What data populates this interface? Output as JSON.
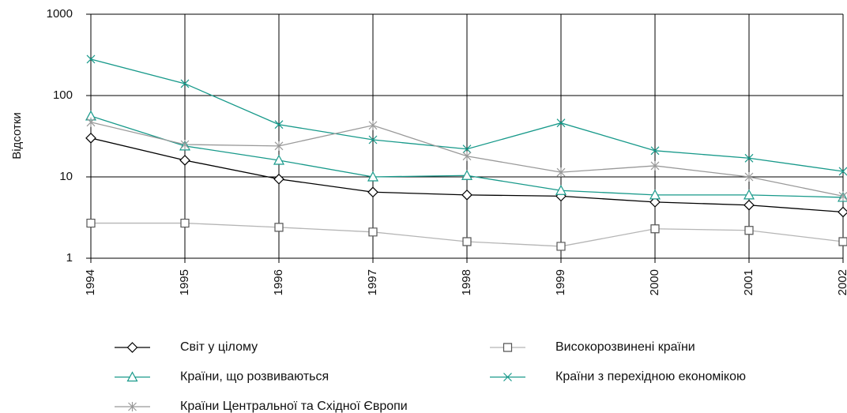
{
  "chart_data": {
    "type": "line",
    "y_label": "Відсотки",
    "log_scale": true,
    "grid": true,
    "categories": [
      "1994",
      "1995",
      "1996",
      "1997",
      "1998",
      "1999",
      "2000",
      "2001",
      "2002"
    ],
    "ylim": [
      1,
      1000
    ],
    "yticks": [
      1,
      10,
      100,
      1000
    ],
    "series": [
      {
        "name": "Світ у цілому",
        "color": "#000000",
        "marker": "diamond",
        "values": [
          30,
          16,
          9.4,
          6.5,
          6,
          5.8,
          4.9,
          4.5,
          3.7
        ]
      },
      {
        "name": "Високорозвинені країни",
        "color": "#b5b5b5",
        "marker": "square",
        "values": [
          2.7,
          2.7,
          2.4,
          2.1,
          1.6,
          1.4,
          2.3,
          2.2,
          1.6
        ]
      },
      {
        "name": "Країни, що розвиваються",
        "color": "#17998a",
        "marker": "triangle",
        "values": [
          56,
          24,
          16,
          10,
          10.4,
          6.8,
          6,
          6,
          5.6
        ]
      },
      {
        "name": "Країни з перехідною економікою",
        "color": "#17998a",
        "marker": "cross",
        "values": [
          280,
          140,
          44,
          28.6,
          22,
          46,
          21,
          17,
          11.7
        ]
      },
      {
        "name": "Країни Центральної та Східної Європи",
        "color": "#999999",
        "marker": "asterisk",
        "values": [
          47,
          25,
          24,
          43,
          18,
          11.4,
          13.7,
          10,
          5.8
        ]
      }
    ]
  }
}
